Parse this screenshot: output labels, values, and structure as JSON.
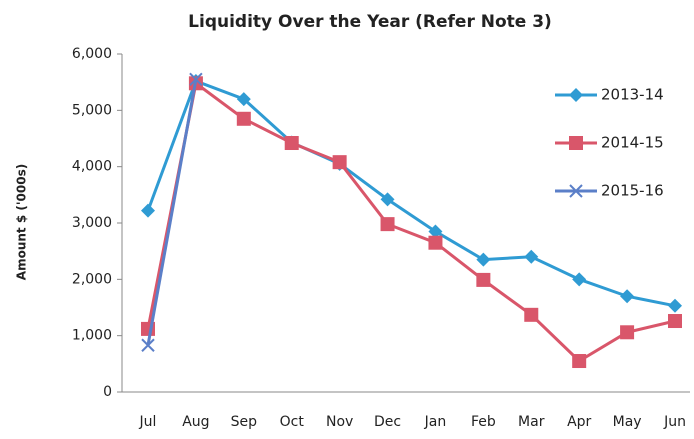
{
  "chart_data": {
    "type": "line",
    "title": "Liquidity Over the Year (Refer Note 3)",
    "y_label": "Amount $ ('000s)",
    "categories": [
      "Jul",
      "Aug",
      "Sep",
      "Oct",
      "Nov",
      "Dec",
      "Jan",
      "Feb",
      "Mar",
      "Apr",
      "May",
      "Jun"
    ],
    "series": [
      {
        "name": "2013-14",
        "color": "#2f9bd3",
        "marker": "diamond",
        "values": [
          3220,
          5520,
          5200,
          4430,
          4050,
          3420,
          2850,
          2350,
          2400,
          2000,
          1700,
          1530
        ]
      },
      {
        "name": "2014-15",
        "color": "#d9566a",
        "marker": "square",
        "values": [
          1120,
          5480,
          4850,
          4420,
          4080,
          2980,
          2650,
          1990,
          1370,
          550,
          1060,
          1260
        ]
      },
      {
        "name": "2015-16",
        "color": "#5b7fc8",
        "marker": "x",
        "values": [
          830,
          5550,
          null,
          null,
          null,
          null,
          null,
          null,
          null,
          null,
          null,
          null
        ]
      }
    ],
    "ylim": [
      0,
      6000
    ],
    "yticks": [
      0,
      {
        "value": 1000,
        "label": "1,000"
      },
      {
        "value": 2000,
        "label": "2,000"
      },
      {
        "value": 3000,
        "label": "3,000"
      },
      {
        "value": 4000,
        "label": "4,000"
      },
      {
        "value": 5000,
        "label": "5,000"
      },
      {
        "value": 6000,
        "label": "6,000"
      }
    ],
    "legend": "right"
  }
}
